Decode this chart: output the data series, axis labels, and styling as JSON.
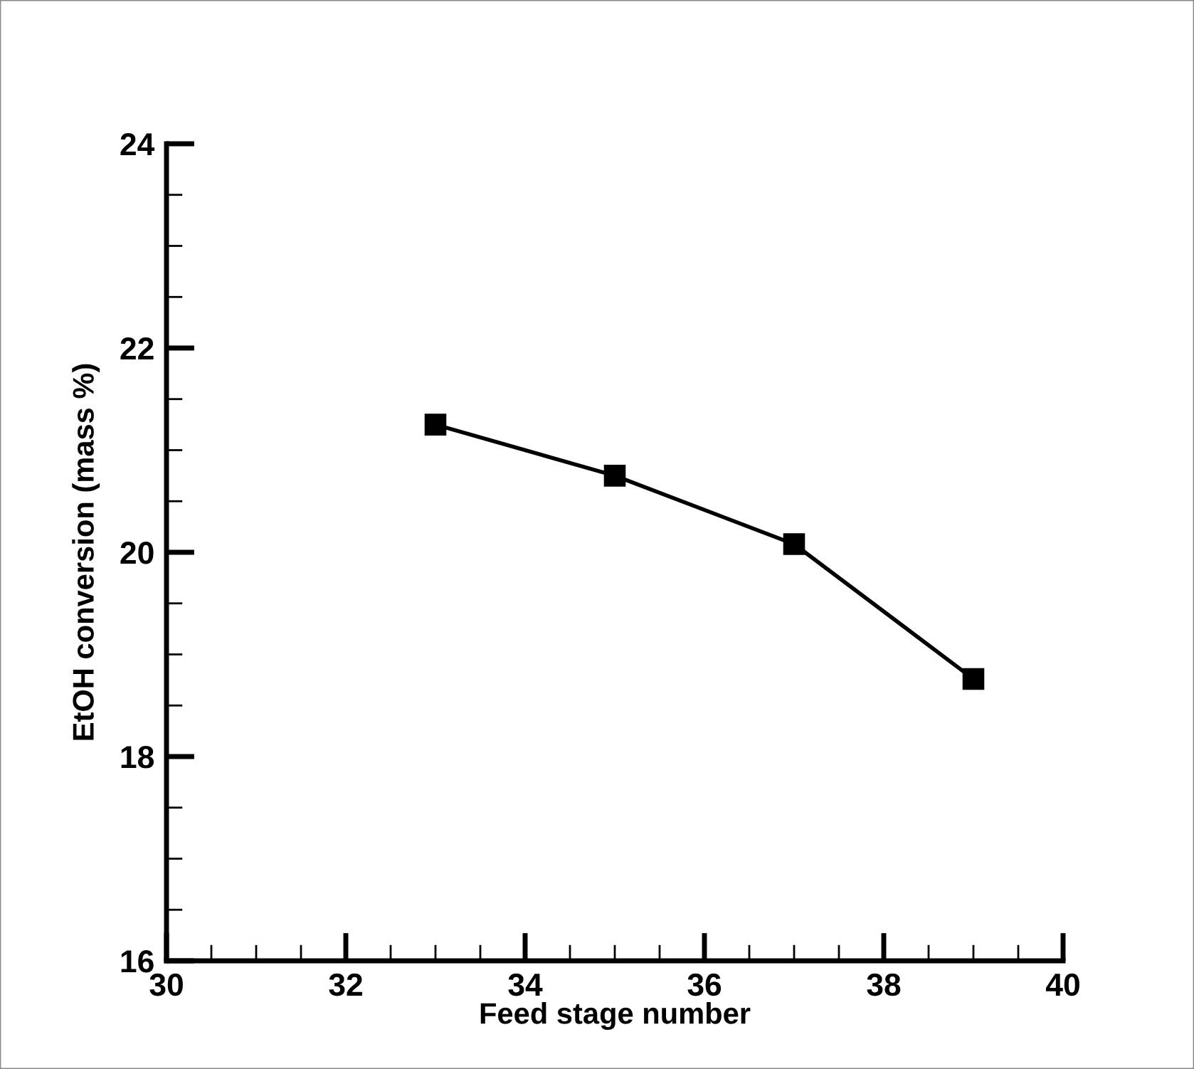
{
  "chart_data": {
    "type": "line",
    "xlabel": "Feed stage number",
    "ylabel": "EtOH conversion (mass %)",
    "x": [
      33,
      35,
      37,
      39
    ],
    "series": [
      {
        "color": "#000000",
        "values": [
          21.25,
          20.75,
          20.08,
          18.76
        ]
      }
    ],
    "xlim": [
      30,
      40
    ],
    "xticks": [
      30,
      32,
      34,
      36,
      38,
      40
    ],
    "ylim": [
      16,
      24
    ],
    "yticks": [
      16,
      18,
      20,
      22,
      24
    ],
    "marker": "square",
    "line_style": "solid",
    "grid": false,
    "legend": false
  }
}
